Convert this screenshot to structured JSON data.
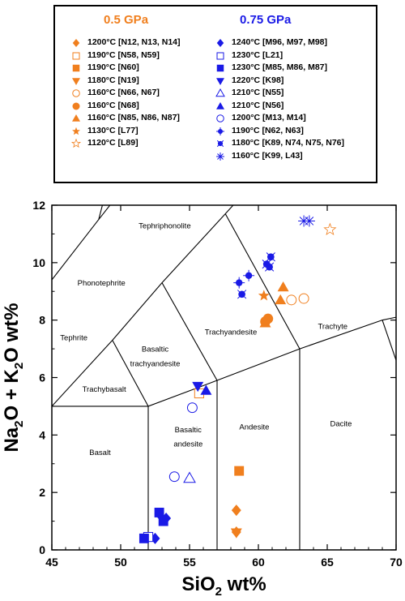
{
  "colors": {
    "orange": "#F07F1E",
    "blue": "#1A1AE6",
    "boundary": "#000000"
  },
  "legend": {
    "col1_title": "0.5 GPa",
    "col2_title": "0.75 GPa",
    "col1": [
      {
        "label": "1200°C [N12, N13, N14]",
        "marker": "diamond-filled"
      },
      {
        "label": "1190°C [N58, N59]",
        "marker": "square-open"
      },
      {
        "label": "1190°C [N60]",
        "marker": "square-filled"
      },
      {
        "label": "1180°C [N19]",
        "marker": "triangle-down-filled"
      },
      {
        "label": "1160°C [N66, N67]",
        "marker": "circle-open"
      },
      {
        "label": "1160°C [N68]",
        "marker": "circle-filled"
      },
      {
        "label": "1160°C [N85, N86, N87]",
        "marker": "triangle-up-filled"
      },
      {
        "label": "1130°C [L77]",
        "marker": "star-filled"
      },
      {
        "label": "1120°C [L89]",
        "marker": "star-open"
      }
    ],
    "col2": [
      {
        "label": "1240°C [M96, M97, M98]",
        "marker": "diamond-filled"
      },
      {
        "label": "1230°C [L21]",
        "marker": "square-open"
      },
      {
        "label": "1230°C [M85, M86, M87]",
        "marker": "square-filled"
      },
      {
        "label": "1220°C [K98]",
        "marker": "triangle-down-filled"
      },
      {
        "label": "1210°C [N55]",
        "marker": "triangle-up-open"
      },
      {
        "label": "1210°C [N56]",
        "marker": "triangle-up-filled"
      },
      {
        "label": "1200°C [M13, M14]",
        "marker": "circle-open"
      },
      {
        "label": "1190°C [N62, N63]",
        "marker": "circle-cross"
      },
      {
        "label": "1180°C [K89, N74, N75, N76]",
        "marker": "circle-dot"
      },
      {
        "label": "1160°C [K99, L43]",
        "marker": "asterisk"
      }
    ]
  },
  "chart_data": {
    "type": "scatter",
    "xlabel_main": "SiO",
    "xlabel_sub": "2",
    "xlabel_tail": " wt%",
    "ylabel_parts": [
      "Na",
      "2",
      "O + K",
      "2",
      "O wt%"
    ],
    "xlim": [
      45,
      70
    ],
    "ylim": [
      0,
      12
    ],
    "xticks": [
      45,
      50,
      55,
      60,
      65,
      70
    ],
    "yticks": [
      0,
      2,
      4,
      6,
      8,
      10,
      12
    ],
    "grid": false,
    "fields": [
      {
        "name": "Tephriphonolite",
        "x": 53.2,
        "y": 11.2
      },
      {
        "name": "Phonotephrite",
        "x": 48.6,
        "y": 9.2
      },
      {
        "name": "Tephrite",
        "x": 46.6,
        "y": 7.3
      },
      {
        "name": "Trachyandesite",
        "x": 58.0,
        "y": 7.5
      },
      {
        "name": "Trachyte",
        "x": 65.4,
        "y": 7.7
      },
      {
        "name": "Basaltic",
        "x": 52.5,
        "y": 6.9
      },
      {
        "name": "trachyandesite",
        "x": 52.5,
        "y": 6.4
      },
      {
        "name": "Trachybasalt",
        "x": 48.8,
        "y": 5.5
      },
      {
        "name": "Andesite",
        "x": 59.7,
        "y": 4.2
      },
      {
        "name": "Dacite",
        "x": 66.0,
        "y": 4.3
      },
      {
        "name": "Basaltic",
        "x": 54.9,
        "y": 4.1
      },
      {
        "name": "andesite",
        "x": 54.9,
        "y": 3.6
      },
      {
        "name": "Basalt",
        "x": 48.5,
        "y": 3.3
      }
    ],
    "boundaries": [
      [
        [
          45,
          5
        ],
        [
          52,
          5
        ],
        [
          57,
          5.9
        ],
        [
          63,
          7
        ],
        [
          69,
          8
        ],
        [
          70,
          8.1
        ]
      ],
      [
        [
          52,
          0
        ],
        [
          52,
          5
        ]
      ],
      [
        [
          57,
          0
        ],
        [
          57,
          5.9
        ]
      ],
      [
        [
          63,
          0
        ],
        [
          63,
          7
        ]
      ],
      [
        [
          69,
          8
        ],
        [
          70,
          6.6
        ]
      ],
      [
        [
          45,
          9.4
        ],
        [
          48.4,
          11.5
        ]
      ],
      [
        [
          48.4,
          11.5
        ],
        [
          52.5,
          14
        ]
      ],
      [
        [
          49.4,
          7.3
        ],
        [
          53,
          9.3
        ],
        [
          57.6,
          11.7
        ]
      ],
      [
        [
          45,
          5
        ],
        [
          49.4,
          7.3
        ]
      ],
      [
        [
          52,
          5
        ],
        [
          49.4,
          7.3
        ]
      ],
      [
        [
          57,
          5.9
        ],
        [
          53,
          9.3
        ]
      ],
      [
        [
          63,
          7
        ],
        [
          57.6,
          11.7
        ]
      ],
      [
        [
          48.4,
          11.5
        ],
        [
          50.3,
          15
        ]
      ],
      [
        [
          57.6,
          11.7
        ],
        [
          61,
          13.5
        ]
      ]
    ],
    "series": [
      {
        "name": "1200°C [N12, N13, N14]",
        "color": "orange",
        "marker": "diamond-filled",
        "points": [
          [
            58.4,
            1.38
          ],
          [
            58.4,
            0.62
          ]
        ]
      },
      {
        "name": "1190°C [N58, N59]",
        "color": "orange",
        "marker": "square-open",
        "points": [
          [
            55.7,
            5.45
          ]
        ]
      },
      {
        "name": "1190°C [N60]",
        "color": "orange",
        "marker": "square-filled",
        "points": [
          [
            58.6,
            2.75
          ]
        ]
      },
      {
        "name": "1180°C [N19]",
        "color": "orange",
        "marker": "triangle-down-filled",
        "points": [
          [
            58.4,
            0.6
          ]
        ]
      },
      {
        "name": "1160°C [N66, N67]",
        "color": "orange",
        "marker": "circle-open",
        "points": [
          [
            62.4,
            8.7
          ],
          [
            63.3,
            8.75
          ]
        ]
      },
      {
        "name": "1160°C [N68]",
        "color": "orange",
        "marker": "circle-filled",
        "points": [
          [
            60.5,
            7.95
          ],
          [
            60.7,
            8.05
          ]
        ]
      },
      {
        "name": "1160°C [N85, N86, N87]",
        "color": "orange",
        "marker": "triangle-up-filled",
        "points": [
          [
            61.8,
            9.15
          ],
          [
            61.6,
            8.7
          ],
          [
            60.5,
            7.9
          ]
        ]
      },
      {
        "name": "1130°C [L77]",
        "color": "orange",
        "marker": "star-filled",
        "points": [
          [
            60.4,
            8.85
          ]
        ]
      },
      {
        "name": "1120°C [L89]",
        "color": "orange",
        "marker": "star-open",
        "points": [
          [
            65.2,
            11.15
          ]
        ]
      },
      {
        "name": "1240°C [M96, M97, M98]",
        "color": "blue",
        "marker": "diamond-filled",
        "points": [
          [
            52.5,
            0.4
          ],
          [
            53.3,
            1.1
          ],
          [
            52.8,
            1.25
          ]
        ]
      },
      {
        "name": "1230°C [L21]",
        "color": "blue",
        "marker": "square-open",
        "points": [
          [
            52.0,
            0.45
          ]
        ]
      },
      {
        "name": "1230°C [M85, M86, M87]",
        "color": "blue",
        "marker": "square-filled",
        "points": [
          [
            51.7,
            0.4
          ],
          [
            52.8,
            1.3
          ],
          [
            53.1,
            1.0
          ]
        ]
      },
      {
        "name": "1220°C [K98]",
        "color": "blue",
        "marker": "triangle-down-filled",
        "points": [
          [
            55.6,
            5.7
          ]
        ]
      },
      {
        "name": "1210°C [N55]",
        "color": "blue",
        "marker": "triangle-up-open",
        "points": [
          [
            55.0,
            2.5
          ]
        ]
      },
      {
        "name": "1210°C [N56]",
        "color": "blue",
        "marker": "triangle-up-filled",
        "points": [
          [
            56.2,
            5.55
          ]
        ]
      },
      {
        "name": "1200°C [M13, M14]",
        "color": "blue",
        "marker": "circle-open",
        "points": [
          [
            53.9,
            2.55
          ],
          [
            55.2,
            4.95
          ]
        ]
      },
      {
        "name": "1190°C [N62, N63]",
        "color": "blue",
        "marker": "circle-cross",
        "points": [
          [
            58.6,
            9.3
          ],
          [
            59.3,
            9.55
          ]
        ]
      },
      {
        "name": "1180°C [K89, N74, N75, N76]",
        "color": "blue",
        "marker": "circle-dot",
        "points": [
          [
            58.8,
            8.9
          ],
          [
            60.6,
            9.95
          ],
          [
            60.8,
            9.85
          ],
          [
            60.9,
            10.2
          ]
        ]
      },
      {
        "name": "1160°C [K99, L43]",
        "color": "blue",
        "marker": "asterisk",
        "points": [
          [
            63.3,
            11.45
          ],
          [
            63.7,
            11.45
          ]
        ]
      }
    ]
  }
}
